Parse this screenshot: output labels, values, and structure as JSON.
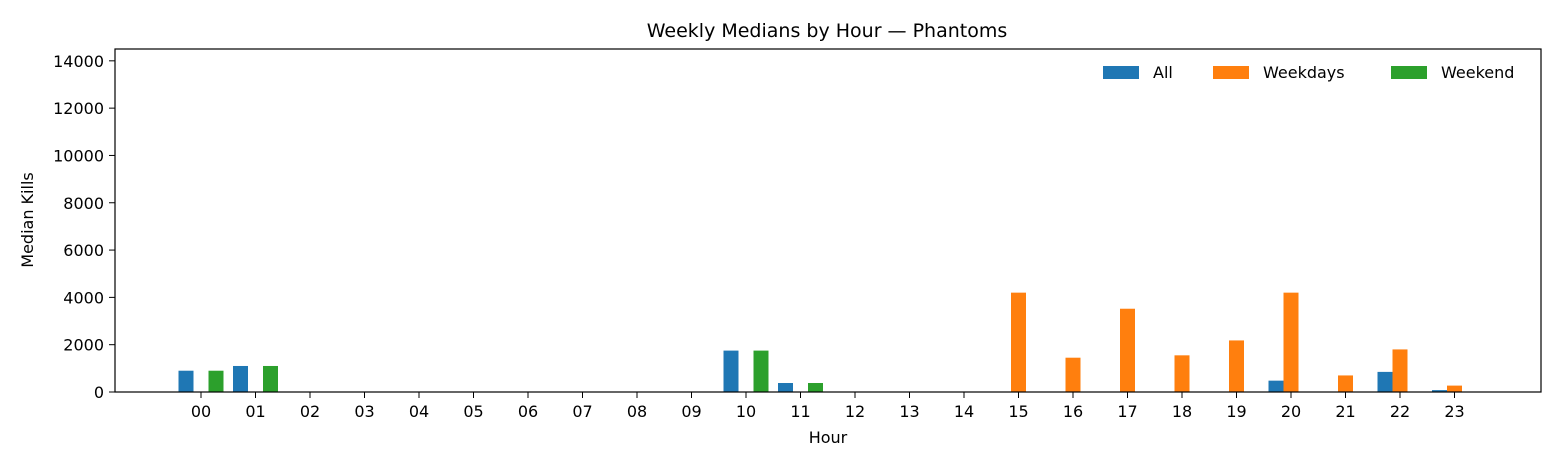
{
  "chart_data": {
    "type": "bar",
    "title": "Weekly Medians by Hour — Phantoms",
    "xlabel": "Hour",
    "ylabel": "Median Kills",
    "ylim": [
      0,
      14500
    ],
    "yticks": [
      0,
      2000,
      4000,
      6000,
      8000,
      10000,
      12000,
      14000
    ],
    "legend_position": "top-right",
    "grid": false,
    "categories": [
      "00",
      "01",
      "02",
      "03",
      "04",
      "05",
      "06",
      "07",
      "08",
      "09",
      "10",
      "11",
      "12",
      "13",
      "14",
      "15",
      "16",
      "17",
      "18",
      "19",
      "20",
      "21",
      "22",
      "23"
    ],
    "series": [
      {
        "name": "All",
        "color": "#1f77b4",
        "values": [
          900,
          1100,
          0,
          0,
          0,
          0,
          0,
          0,
          0,
          0,
          1750,
          380,
          0,
          0,
          0,
          0,
          0,
          0,
          0,
          0,
          480,
          0,
          850,
          80
        ]
      },
      {
        "name": "Weekdays",
        "color": "#ff7f0e",
        "values": [
          0,
          0,
          0,
          0,
          0,
          0,
          0,
          0,
          0,
          0,
          0,
          0,
          0,
          0,
          0,
          4200,
          1450,
          3520,
          1550,
          2180,
          4200,
          700,
          1800,
          270
        ]
      },
      {
        "name": "Weekend",
        "color": "#2ca02c",
        "values": [
          900,
          1100,
          0,
          0,
          0,
          0,
          0,
          0,
          0,
          0,
          1750,
          380,
          0,
          0,
          0,
          0,
          0,
          0,
          0,
          0,
          0,
          0,
          0,
          0
        ]
      }
    ]
  }
}
